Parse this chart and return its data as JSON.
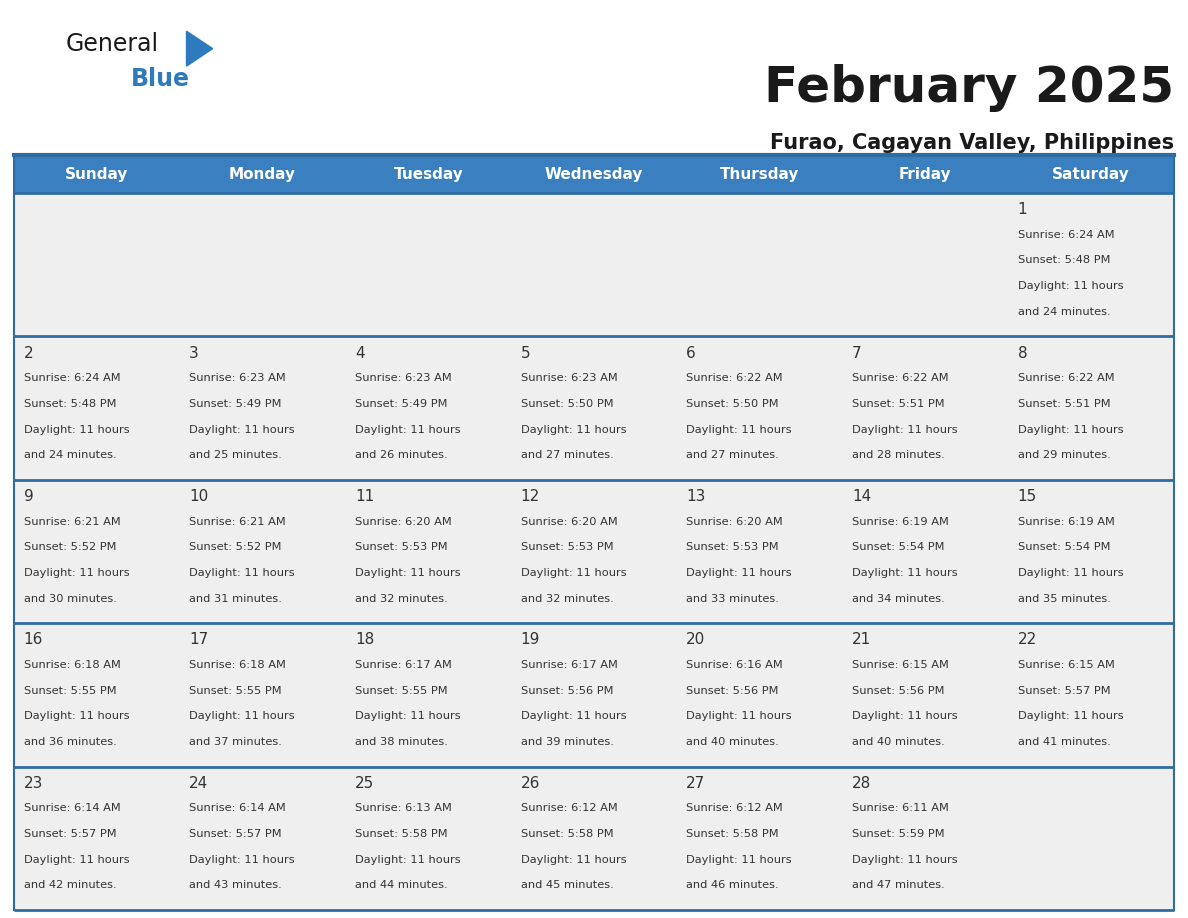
{
  "title": "February 2025",
  "subtitle": "Furao, Cagayan Valley, Philippines",
  "header_bg_color": "#3a7fbf",
  "header_text_color": "#ffffff",
  "cell_bg_color": "#efefef",
  "border_color": "#2e6da4",
  "title_color": "#1a1a1a",
  "subtitle_color": "#1a1a1a",
  "day_number_color": "#333333",
  "cell_text_color": "#333333",
  "days_of_week": [
    "Sunday",
    "Monday",
    "Tuesday",
    "Wednesday",
    "Thursday",
    "Friday",
    "Saturday"
  ],
  "weeks": [
    [
      {
        "day": 0,
        "info": ""
      },
      {
        "day": 0,
        "info": ""
      },
      {
        "day": 0,
        "info": ""
      },
      {
        "day": 0,
        "info": ""
      },
      {
        "day": 0,
        "info": ""
      },
      {
        "day": 0,
        "info": ""
      },
      {
        "day": 1,
        "info": "Sunrise: 6:24 AM\nSunset: 5:48 PM\nDaylight: 11 hours\nand 24 minutes."
      }
    ],
    [
      {
        "day": 2,
        "info": "Sunrise: 6:24 AM\nSunset: 5:48 PM\nDaylight: 11 hours\nand 24 minutes."
      },
      {
        "day": 3,
        "info": "Sunrise: 6:23 AM\nSunset: 5:49 PM\nDaylight: 11 hours\nand 25 minutes."
      },
      {
        "day": 4,
        "info": "Sunrise: 6:23 AM\nSunset: 5:49 PM\nDaylight: 11 hours\nand 26 minutes."
      },
      {
        "day": 5,
        "info": "Sunrise: 6:23 AM\nSunset: 5:50 PM\nDaylight: 11 hours\nand 27 minutes."
      },
      {
        "day": 6,
        "info": "Sunrise: 6:22 AM\nSunset: 5:50 PM\nDaylight: 11 hours\nand 27 minutes."
      },
      {
        "day": 7,
        "info": "Sunrise: 6:22 AM\nSunset: 5:51 PM\nDaylight: 11 hours\nand 28 minutes."
      },
      {
        "day": 8,
        "info": "Sunrise: 6:22 AM\nSunset: 5:51 PM\nDaylight: 11 hours\nand 29 minutes."
      }
    ],
    [
      {
        "day": 9,
        "info": "Sunrise: 6:21 AM\nSunset: 5:52 PM\nDaylight: 11 hours\nand 30 minutes."
      },
      {
        "day": 10,
        "info": "Sunrise: 6:21 AM\nSunset: 5:52 PM\nDaylight: 11 hours\nand 31 minutes."
      },
      {
        "day": 11,
        "info": "Sunrise: 6:20 AM\nSunset: 5:53 PM\nDaylight: 11 hours\nand 32 minutes."
      },
      {
        "day": 12,
        "info": "Sunrise: 6:20 AM\nSunset: 5:53 PM\nDaylight: 11 hours\nand 32 minutes."
      },
      {
        "day": 13,
        "info": "Sunrise: 6:20 AM\nSunset: 5:53 PM\nDaylight: 11 hours\nand 33 minutes."
      },
      {
        "day": 14,
        "info": "Sunrise: 6:19 AM\nSunset: 5:54 PM\nDaylight: 11 hours\nand 34 minutes."
      },
      {
        "day": 15,
        "info": "Sunrise: 6:19 AM\nSunset: 5:54 PM\nDaylight: 11 hours\nand 35 minutes."
      }
    ],
    [
      {
        "day": 16,
        "info": "Sunrise: 6:18 AM\nSunset: 5:55 PM\nDaylight: 11 hours\nand 36 minutes."
      },
      {
        "day": 17,
        "info": "Sunrise: 6:18 AM\nSunset: 5:55 PM\nDaylight: 11 hours\nand 37 minutes."
      },
      {
        "day": 18,
        "info": "Sunrise: 6:17 AM\nSunset: 5:55 PM\nDaylight: 11 hours\nand 38 minutes."
      },
      {
        "day": 19,
        "info": "Sunrise: 6:17 AM\nSunset: 5:56 PM\nDaylight: 11 hours\nand 39 minutes."
      },
      {
        "day": 20,
        "info": "Sunrise: 6:16 AM\nSunset: 5:56 PM\nDaylight: 11 hours\nand 40 minutes."
      },
      {
        "day": 21,
        "info": "Sunrise: 6:15 AM\nSunset: 5:56 PM\nDaylight: 11 hours\nand 40 minutes."
      },
      {
        "day": 22,
        "info": "Sunrise: 6:15 AM\nSunset: 5:57 PM\nDaylight: 11 hours\nand 41 minutes."
      }
    ],
    [
      {
        "day": 23,
        "info": "Sunrise: 6:14 AM\nSunset: 5:57 PM\nDaylight: 11 hours\nand 42 minutes."
      },
      {
        "day": 24,
        "info": "Sunrise: 6:14 AM\nSunset: 5:57 PM\nDaylight: 11 hours\nand 43 minutes."
      },
      {
        "day": 25,
        "info": "Sunrise: 6:13 AM\nSunset: 5:58 PM\nDaylight: 11 hours\nand 44 minutes."
      },
      {
        "day": 26,
        "info": "Sunrise: 6:12 AM\nSunset: 5:58 PM\nDaylight: 11 hours\nand 45 minutes."
      },
      {
        "day": 27,
        "info": "Sunrise: 6:12 AM\nSunset: 5:58 PM\nDaylight: 11 hours\nand 46 minutes."
      },
      {
        "day": 28,
        "info": "Sunrise: 6:11 AM\nSunset: 5:59 PM\nDaylight: 11 hours\nand 47 minutes."
      },
      {
        "day": 0,
        "info": ""
      }
    ]
  ],
  "logo_text_general": "General",
  "logo_text_blue": "Blue",
  "logo_general_color": "#1a1a1a",
  "logo_blue_color": "#2e7abf",
  "logo_triangle_color": "#2e7abf",
  "fig_width": 11.88,
  "fig_height": 9.18,
  "dpi": 100
}
